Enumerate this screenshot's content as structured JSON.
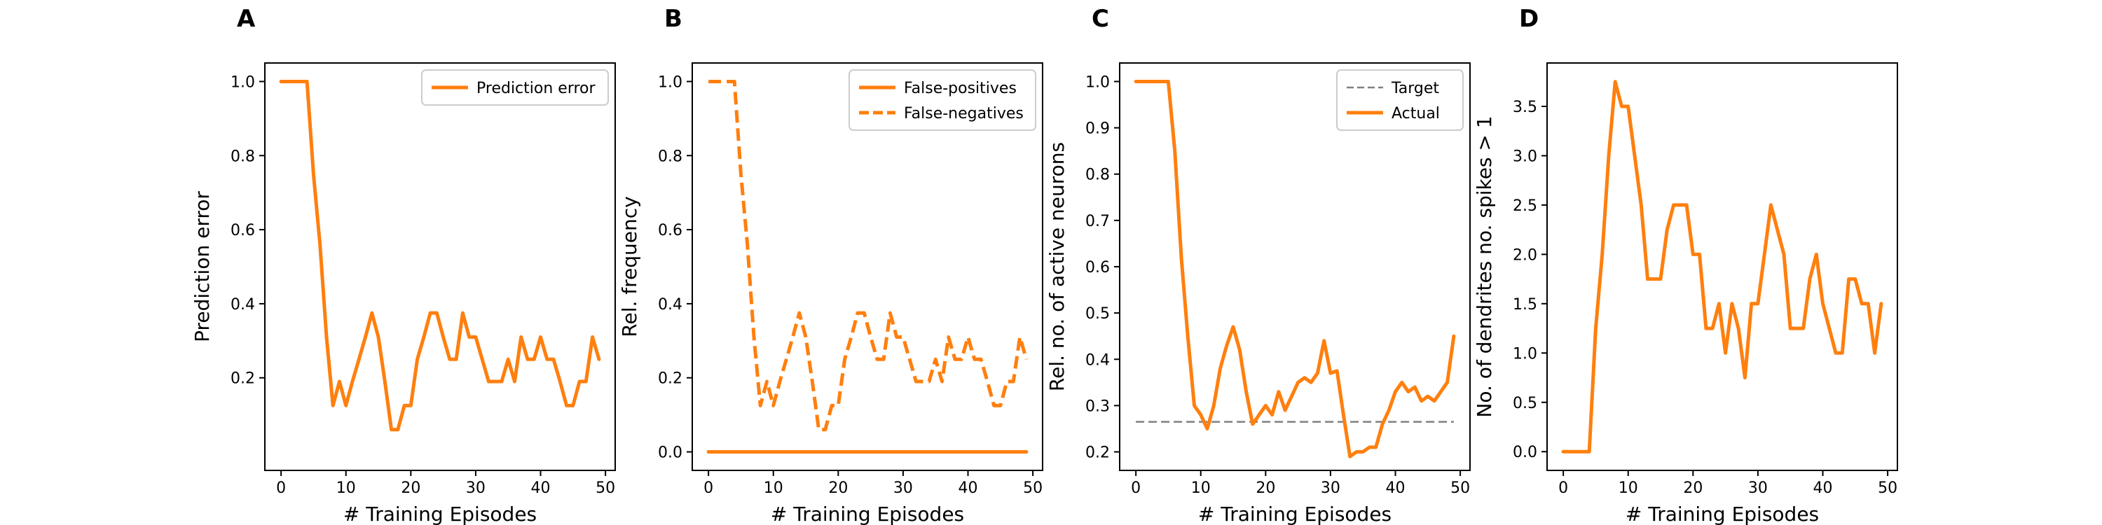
{
  "chart_data": [
    {
      "type": "line",
      "panel": "A",
      "xlabel": "# Training Episodes",
      "ylabel": "Prediction error",
      "xlim": [
        -2.5,
        51.5
      ],
      "ylim": [
        -0.05,
        1.05
      ],
      "xticks": [
        0,
        10,
        20,
        30,
        40,
        50
      ],
      "yticks": [
        0.2,
        0.4,
        0.6,
        0.8,
        1.0
      ],
      "ytick_labels": [
        "0.2",
        "0.4",
        "0.6",
        "0.8",
        "1.0"
      ],
      "grid": false,
      "legend": "upper-right",
      "series": [
        {
          "name": "Prediction error",
          "color": "#ff7f0e",
          "dash": "solid",
          "x": [
            0,
            1,
            2,
            3,
            4,
            5,
            6,
            7,
            8,
            9,
            10,
            11,
            12,
            13,
            14,
            15,
            16,
            17,
            18,
            19,
            20,
            21,
            22,
            23,
            24,
            25,
            26,
            27,
            28,
            29,
            30,
            31,
            32,
            33,
            34,
            35,
            36,
            37,
            38,
            39,
            40,
            41,
            42,
            43,
            44,
            45,
            46,
            47,
            48,
            49
          ],
          "y": [
            1.0,
            1.0,
            1.0,
            1.0,
            1.0,
            0.75,
            0.56,
            0.31,
            0.125,
            0.19,
            0.125,
            0.19,
            0.25,
            0.31,
            0.375,
            0.31,
            0.19,
            0.06,
            0.06,
            0.125,
            0.125,
            0.25,
            0.31,
            0.375,
            0.375,
            0.31,
            0.25,
            0.25,
            0.375,
            0.31,
            0.31,
            0.25,
            0.19,
            0.19,
            0.19,
            0.25,
            0.19,
            0.31,
            0.25,
            0.25,
            0.31,
            0.25,
            0.25,
            0.19,
            0.125,
            0.125,
            0.19,
            0.19,
            0.31,
            0.25
          ]
        }
      ]
    },
    {
      "type": "line",
      "panel": "B",
      "xlabel": "# Training Episodes",
      "ylabel": "Rel. frequency",
      "xlim": [
        -2.5,
        51.5
      ],
      "ylim": [
        -0.05,
        1.05
      ],
      "xticks": [
        0,
        10,
        20,
        30,
        40,
        50
      ],
      "yticks": [
        0.0,
        0.2,
        0.4,
        0.6,
        0.8,
        1.0
      ],
      "ytick_labels": [
        "0.0",
        "0.2",
        "0.4",
        "0.6",
        "0.8",
        "1.0"
      ],
      "grid": false,
      "legend": "upper-right",
      "series": [
        {
          "name": "False-positives",
          "color": "#ff7f0e",
          "dash": "solid",
          "x": [
            0,
            49
          ],
          "y": [
            0.0,
            0.0
          ]
        },
        {
          "name": "False-negatives",
          "color": "#ff7f0e",
          "dash": "dashed",
          "x": [
            0,
            1,
            2,
            3,
            4,
            5,
            6,
            7,
            8,
            9,
            10,
            11,
            12,
            13,
            14,
            15,
            16,
            17,
            18,
            19,
            20,
            21,
            22,
            23,
            24,
            25,
            26,
            27,
            28,
            29,
            30,
            31,
            32,
            33,
            34,
            35,
            36,
            37,
            38,
            39,
            40,
            41,
            42,
            43,
            44,
            45,
            46,
            47,
            48,
            49
          ],
          "y": [
            1.0,
            1.0,
            1.0,
            1.0,
            1.0,
            0.75,
            0.56,
            0.31,
            0.125,
            0.19,
            0.125,
            0.19,
            0.25,
            0.31,
            0.375,
            0.31,
            0.19,
            0.06,
            0.06,
            0.125,
            0.125,
            0.25,
            0.31,
            0.375,
            0.375,
            0.31,
            0.25,
            0.25,
            0.375,
            0.31,
            0.31,
            0.25,
            0.19,
            0.19,
            0.19,
            0.25,
            0.19,
            0.31,
            0.25,
            0.25,
            0.31,
            0.25,
            0.25,
            0.19,
            0.125,
            0.125,
            0.19,
            0.19,
            0.31,
            0.25
          ]
        }
      ]
    },
    {
      "type": "line",
      "panel": "C",
      "xlabel": "# Training Episodes",
      "ylabel": "Rel. no. of active neurons",
      "xlim": [
        -2.5,
        51.5
      ],
      "ylim": [
        0.16,
        1.04
      ],
      "xticks": [
        0,
        10,
        20,
        30,
        40,
        50
      ],
      "yticks": [
        0.2,
        0.3,
        0.4,
        0.5,
        0.6,
        0.7,
        0.8,
        0.9,
        1.0
      ],
      "ytick_labels": [
        "0.2",
        "0.3",
        "0.4",
        "0.5",
        "0.6",
        "0.7",
        "0.8",
        "0.9",
        "1.0"
      ],
      "grid": false,
      "legend": "upper-right",
      "series": [
        {
          "name": "Target",
          "color": "#808080",
          "dash": "dashed",
          "x": [
            0,
            49
          ],
          "y": [
            0.265,
            0.265
          ]
        },
        {
          "name": "Actual",
          "color": "#ff7f0e",
          "dash": "solid",
          "x": [
            0,
            1,
            2,
            3,
            4,
            5,
            6,
            7,
            8,
            9,
            10,
            11,
            12,
            13,
            14,
            15,
            16,
            17,
            18,
            19,
            20,
            21,
            22,
            23,
            24,
            25,
            26,
            27,
            28,
            29,
            30,
            31,
            32,
            33,
            34,
            35,
            36,
            37,
            38,
            39,
            40,
            41,
            42,
            43,
            44,
            45,
            46,
            47,
            48,
            49
          ],
          "y": [
            1.0,
            1.0,
            1.0,
            1.0,
            1.0,
            1.0,
            0.85,
            0.62,
            0.45,
            0.3,
            0.28,
            0.25,
            0.3,
            0.38,
            0.43,
            0.47,
            0.42,
            0.33,
            0.26,
            0.28,
            0.3,
            0.28,
            0.33,
            0.29,
            0.32,
            0.35,
            0.36,
            0.35,
            0.37,
            0.44,
            0.37,
            0.375,
            0.28,
            0.19,
            0.2,
            0.2,
            0.21,
            0.21,
            0.26,
            0.29,
            0.33,
            0.35,
            0.33,
            0.34,
            0.31,
            0.32,
            0.31,
            0.33,
            0.35,
            0.45
          ]
        }
      ]
    },
    {
      "type": "line",
      "panel": "D",
      "xlabel": "# Training Episodes",
      "ylabel": "No. of dendrites no. spikes > 1",
      "xlim": [
        -2.5,
        51.5
      ],
      "ylim": [
        -0.19,
        3.94
      ],
      "xticks": [
        0,
        10,
        20,
        30,
        40,
        50
      ],
      "yticks": [
        0.0,
        0.5,
        1.0,
        1.5,
        2.0,
        2.5,
        3.0,
        3.5
      ],
      "ytick_labels": [
        "0.0",
        "0.5",
        "1.0",
        "1.5",
        "2.0",
        "2.5",
        "3.0",
        "3.5"
      ],
      "grid": false,
      "legend": "none",
      "series": [
        {
          "color": "#ff7f0e",
          "dash": "solid",
          "x": [
            0,
            1,
            2,
            3,
            4,
            5,
            6,
            7,
            8,
            9,
            10,
            11,
            12,
            13,
            14,
            15,
            16,
            17,
            18,
            19,
            20,
            21,
            22,
            23,
            24,
            25,
            26,
            27,
            28,
            29,
            30,
            31,
            32,
            33,
            34,
            35,
            36,
            37,
            38,
            39,
            40,
            41,
            42,
            43,
            44,
            45,
            46,
            47,
            48,
            49
          ],
          "y": [
            0.0,
            0.0,
            0.0,
            0.0,
            0.0,
            1.25,
            2.0,
            3.0,
            3.75,
            3.5,
            3.5,
            3.0,
            2.5,
            1.75,
            1.75,
            1.75,
            2.25,
            2.5,
            2.5,
            2.5,
            2.0,
            2.0,
            1.25,
            1.25,
            1.5,
            1.0,
            1.5,
            1.25,
            0.75,
            1.5,
            1.5,
            2.0,
            2.5,
            2.25,
            2.0,
            1.25,
            1.25,
            1.25,
            1.75,
            2.0,
            1.5,
            1.25,
            1.0,
            1.0,
            1.75,
            1.75,
            1.5,
            1.5,
            1.0,
            1.5
          ]
        }
      ]
    }
  ]
}
